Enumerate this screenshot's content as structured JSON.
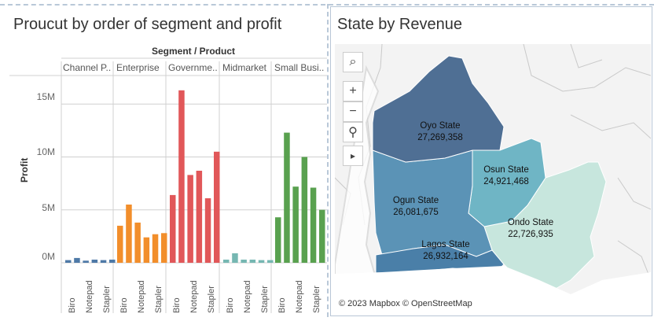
{
  "left_panel": {
    "title": "Proucut by order of segment and profit",
    "header": "Segment / Product",
    "y_axis_label": "Profit",
    "segments": [
      "Channel P..",
      "Enterprise",
      "Governme..",
      "Midmarket",
      "Small Busi.."
    ],
    "y_ticks": [
      "15M",
      "10M",
      "5M",
      "0M"
    ],
    "x_ticks": [
      "Biro",
      "Notepad",
      "Stapler"
    ]
  },
  "right_panel": {
    "title": "State by Revenue",
    "attribution": "© 2023 Mapbox © OpenStreetMap",
    "controls": {
      "search": "⌕",
      "zoom_in": "+",
      "zoom_out": "−",
      "pin": "⚲",
      "play": "▸"
    },
    "states": [
      {
        "name": "Oyo State",
        "value": "27,269,358",
        "color": "#4f6f94"
      },
      {
        "name": "Osun State",
        "value": "24,921,468",
        "color": "#6fb5c5"
      },
      {
        "name": "Ogun State",
        "value": "26,081,675",
        "color": "#5b93b6"
      },
      {
        "name": "Ondo State",
        "value": "22,726,935",
        "color": "#c7e6dd"
      },
      {
        "name": "Lagos State",
        "value": "26,932,164",
        "color": "#4a7fa8"
      }
    ]
  },
  "chart_data": {
    "type": "bar",
    "title": "Proucut by order of segment and profit",
    "ylabel": "Profit",
    "ylim": [
      0,
      17000000
    ],
    "segments": [
      {
        "name": "Channel P..",
        "color": "#4e79a7",
        "values": [
          0.25,
          0.45,
          0.2,
          0.3,
          0.25,
          0.3
        ]
      },
      {
        "name": "Enterprise",
        "color": "#f28e2b",
        "values": [
          3.5,
          5.5,
          3.8,
          2.4,
          2.7,
          2.8
        ]
      },
      {
        "name": "Governme..",
        "color": "#e15759",
        "values": [
          6.4,
          16.3,
          8.3,
          8.7,
          6.1,
          10.5
        ]
      },
      {
        "name": "Midmarket",
        "color": "#76b7b2",
        "values": [
          0.3,
          0.9,
          0.3,
          0.3,
          0.25,
          0.25
        ]
      },
      {
        "name": "Small Busi..",
        "color": "#59a14f",
        "values": [
          4.3,
          12.3,
          7.2,
          10.0,
          7.1,
          5.0
        ]
      }
    ],
    "value_unit": "M",
    "x_tick_labels": [
      "Biro",
      "Notepad",
      "Stapler"
    ],
    "y_ticks": [
      0,
      5000000,
      10000000,
      15000000
    ],
    "grid": true
  }
}
